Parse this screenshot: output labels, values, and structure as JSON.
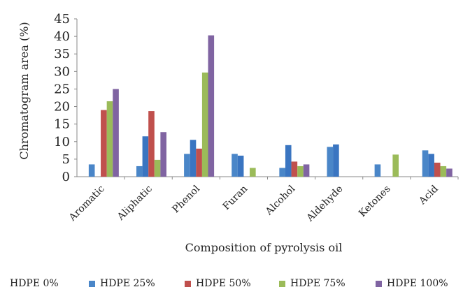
{
  "chart_data": {
    "type": "bar",
    "title": "",
    "xlabel": "Composition of pyrolysis oil",
    "ylabel": "Chromatogram area (%)",
    "ylim": [
      0,
      45
    ],
    "yticks": [
      0,
      5,
      10,
      15,
      20,
      25,
      30,
      35,
      40,
      45
    ],
    "grid": false,
    "legend_position": "bottom",
    "categories": [
      "Aromatic",
      "Aliphatic",
      "Phenol",
      "Furan",
      "Alcohol",
      "Aldehyde",
      "Ketones",
      "Acid"
    ],
    "series": [
      {
        "name": "HDPE 0%",
        "color": "#1f4e9a",
        "values": [
          null,
          null,
          null,
          null,
          null,
          null,
          null,
          null
        ]
      },
      {
        "name": "HDPE 25%",
        "color": "#4a86c8",
        "values": [
          3.5,
          3.0,
          6.5,
          6.5,
          2.5,
          8.5,
          3.5,
          7.5
        ]
      },
      {
        "name": "HDPE 25%",
        "color": "#3a75c1",
        "values": [
          null,
          11.5,
          10.5,
          6.0,
          9.0,
          9.2,
          null,
          6.5
        ]
      },
      {
        "name": "HDPE 50%",
        "color": "#c0504d",
        "values": [
          19.0,
          18.7,
          8.0,
          null,
          4.3,
          null,
          null,
          4.0
        ]
      },
      {
        "name": "HDPE 75%",
        "color": "#9bbb59",
        "values": [
          21.5,
          4.8,
          29.7,
          2.5,
          3.0,
          null,
          6.3,
          3.0
        ]
      },
      {
        "name": "HDPE 100%",
        "color": "#8064a2",
        "values": [
          25.0,
          12.7,
          40.3,
          null,
          3.5,
          null,
          null,
          2.3
        ]
      }
    ]
  },
  "legend": {
    "items": [
      {
        "label": "HDPE 0%",
        "color": "#1f4e9a"
      },
      {
        "label": "HDPE 25%",
        "color": "#4a86c8"
      },
      {
        "label": "HDPE 50%",
        "color": "#c0504d"
      },
      {
        "label": "HDPE 75%",
        "color": "#9bbb59"
      },
      {
        "label": "HDPE 100%",
        "color": "#8064a2"
      }
    ]
  }
}
